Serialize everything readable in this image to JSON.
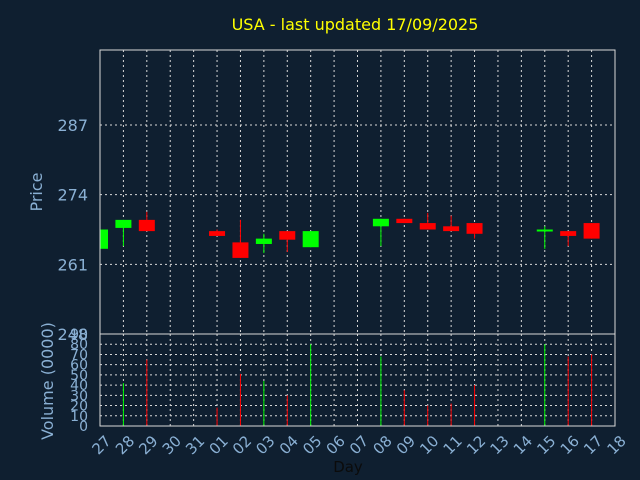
{
  "chart_data": [
    {
      "type": "candlestick",
      "title": "USA - last updated 17/09/2025",
      "ylabel": "Price",
      "ylim": [
        248.0,
        301.0
      ],
      "yticks": [
        248,
        261,
        274,
        287
      ],
      "x_tick_labels": [
        "27",
        "28",
        "29",
        "30",
        "31",
        "01",
        "02",
        "03",
        "04",
        "05",
        "06",
        "07",
        "08",
        "09",
        "10",
        "11",
        "12",
        "13",
        "14",
        "15",
        "16",
        "17",
        "18"
      ],
      "grid": true,
      "colors": {
        "up": "#00ff00",
        "down": "#ff0000",
        "background": "#0f1f30",
        "title": "#ffff00",
        "axis_text": "#8ab0d4"
      },
      "candles": [
        {
          "day": "27",
          "open": 263.9,
          "close": 267.5,
          "high": 267.5,
          "low": 263.9
        },
        {
          "day": "28",
          "open": 267.8,
          "close": 269.3,
          "high": 269.3,
          "low": 264.4
        },
        {
          "day": "29",
          "open": 269.3,
          "close": 267.2,
          "high": 270.8,
          "low": 267.2
        },
        {
          "day": "01",
          "open": 267.2,
          "close": 266.3,
          "high": 267.5,
          "low": 266.3
        },
        {
          "day": "02",
          "open": 265.1,
          "close": 262.2,
          "high": 269.3,
          "low": 262.2
        },
        {
          "day": "03",
          "open": 264.8,
          "close": 265.8,
          "high": 266.7,
          "low": 263.1
        },
        {
          "day": "04",
          "open": 267.2,
          "close": 265.6,
          "high": 267.2,
          "low": 263.3
        },
        {
          "day": "05",
          "open": 264.2,
          "close": 267.2,
          "high": 267.2,
          "low": 264.2
        },
        {
          "day": "08",
          "open": 268.1,
          "close": 269.5,
          "high": 269.5,
          "low": 264.4
        },
        {
          "day": "09",
          "open": 269.5,
          "close": 268.7,
          "high": 269.5,
          "low": 268.7
        },
        {
          "day": "10",
          "open": 268.7,
          "close": 267.5,
          "high": 270.6,
          "low": 267.5
        },
        {
          "day": "11",
          "open": 268.1,
          "close": 267.2,
          "high": 270.1,
          "low": 267.2
        },
        {
          "day": "12",
          "open": 268.7,
          "close": 266.7,
          "high": 268.7,
          "low": 265.8
        },
        {
          "day": "15",
          "open": 267.2,
          "close": 267.5,
          "high": 268.1,
          "low": 263.9
        },
        {
          "day": "16",
          "open": 267.2,
          "close": 266.3,
          "high": 267.2,
          "low": 264.4
        },
        {
          "day": "17",
          "open": 268.7,
          "close": 265.8,
          "high": 268.7,
          "low": 265.8
        }
      ]
    },
    {
      "type": "bar",
      "xlabel": "Day",
      "ylabel": "Volume (0000)",
      "ylim": [
        0,
        90
      ],
      "yticks": [
        0,
        10,
        20,
        30,
        40,
        50,
        60,
        70,
        80,
        90
      ],
      "series": [
        {
          "day": "28",
          "value": 42,
          "direction": "up"
        },
        {
          "day": "29",
          "value": 65,
          "direction": "down"
        },
        {
          "day": "01",
          "value": 18,
          "direction": "down"
        },
        {
          "day": "02",
          "value": 51,
          "direction": "down"
        },
        {
          "day": "03",
          "value": 44,
          "direction": "up"
        },
        {
          "day": "04",
          "value": 30,
          "direction": "down"
        },
        {
          "day": "05",
          "value": 80,
          "direction": "up"
        },
        {
          "day": "08",
          "value": 68,
          "direction": "up"
        },
        {
          "day": "09",
          "value": 35,
          "direction": "down"
        },
        {
          "day": "10",
          "value": 20,
          "direction": "down"
        },
        {
          "day": "11",
          "value": 22,
          "direction": "down"
        },
        {
          "day": "12",
          "value": 40,
          "direction": "down"
        },
        {
          "day": "15",
          "value": 80,
          "direction": "up"
        },
        {
          "day": "16",
          "value": 68,
          "direction": "down"
        },
        {
          "day": "17",
          "value": 70,
          "direction": "down"
        }
      ]
    }
  ]
}
